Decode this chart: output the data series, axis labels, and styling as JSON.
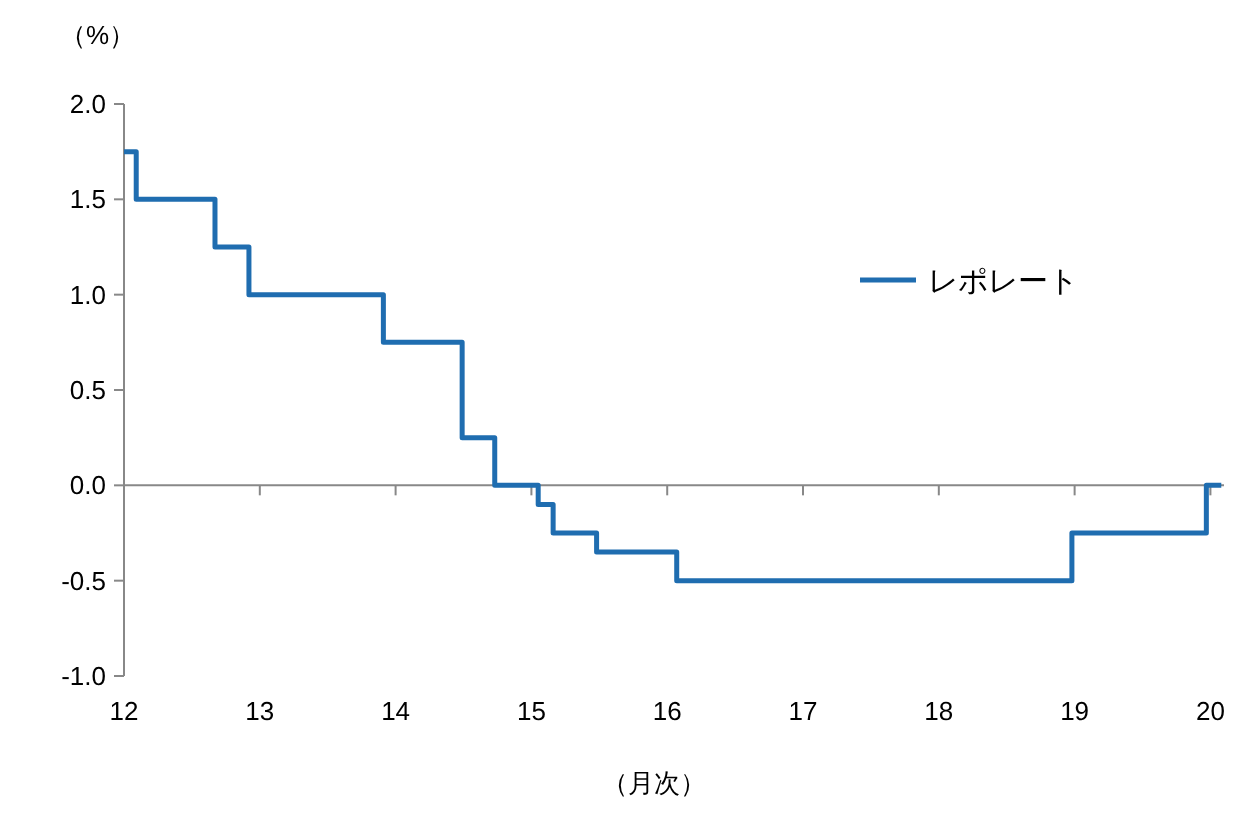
{
  "chart_data": {
    "type": "step",
    "xlabel": "（月次）",
    "ylabel": "（%）",
    "x": [
      12,
      12.09,
      12.67,
      12.92,
      13.91,
      14.49,
      14.73,
      15.05,
      15.16,
      15.48,
      16.07,
      18.98,
      19.97,
      20.08
    ],
    "series": [
      {
        "name": "レポレート",
        "color": "#1f6db0",
        "values": [
          1.75,
          1.5,
          1.25,
          1.0,
          0.75,
          0.25,
          0,
          -0.1,
          -0.25,
          -0.35,
          -0.5,
          -0.25,
          0,
          0
        ]
      }
    ],
    "xlim": [
      12,
      20.1
    ],
    "xticks": [
      12,
      13,
      14,
      15,
      16,
      17,
      18,
      19,
      20
    ],
    "ylim": [
      -1,
      2
    ],
    "yticks": [
      {
        "value": -1,
        "label": "-1.0"
      },
      {
        "value": -0.5,
        "label": "-0.5"
      },
      {
        "value": 0,
        "label": "0.0"
      },
      {
        "value": 0.5,
        "label": "0.5"
      },
      {
        "value": 1,
        "label": "1.0"
      },
      {
        "value": 1.5,
        "label": "1.5"
      },
      {
        "value": 2,
        "label": "2.0"
      }
    ],
    "legend": "top right",
    "line_style": "solid"
  }
}
